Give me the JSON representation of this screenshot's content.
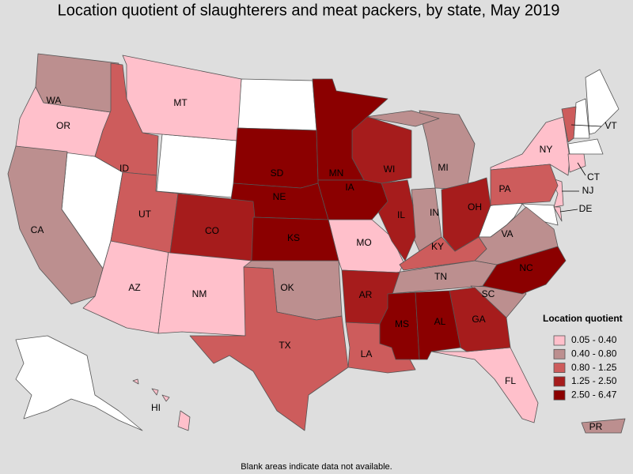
{
  "title": "Location quotient of slaughterers and meat packers, by state, May 2019",
  "legend": {
    "title": "Location quotient",
    "items": [
      {
        "label": "0.05 - 0.40",
        "color": "#ffc0cb",
        "states": [
          "OR",
          "MT",
          "AZ",
          "NM",
          "MO",
          "NY",
          "CT",
          "NJ",
          "DE",
          "FL",
          "HI"
        ]
      },
      {
        "label": "0.40 - 0.80",
        "color": "#bc8f8f",
        "states": [
          "WA",
          "CA",
          "OK",
          "IN",
          "MI",
          "TN",
          "SC",
          "VA",
          "PR"
        ]
      },
      {
        "label": "0.80 - 1.25",
        "color": "#cd5c5c",
        "states": [
          "ID",
          "UT",
          "TX",
          "LA",
          "PA",
          "KY",
          "VT"
        ]
      },
      {
        "label": "1.25 - 2.50",
        "color": "#a61c1c",
        "states": [
          "CO",
          "WI",
          "IL",
          "OH",
          "AR",
          "GA"
        ]
      },
      {
        "label": "2.50 - 6.47",
        "color": "#8b0000",
        "states": [
          "SD",
          "MN",
          "NE",
          "KS",
          "IA",
          "MS",
          "AL",
          "NC"
        ]
      }
    ]
  },
  "footnote": "Blank areas indicate data not available."
}
